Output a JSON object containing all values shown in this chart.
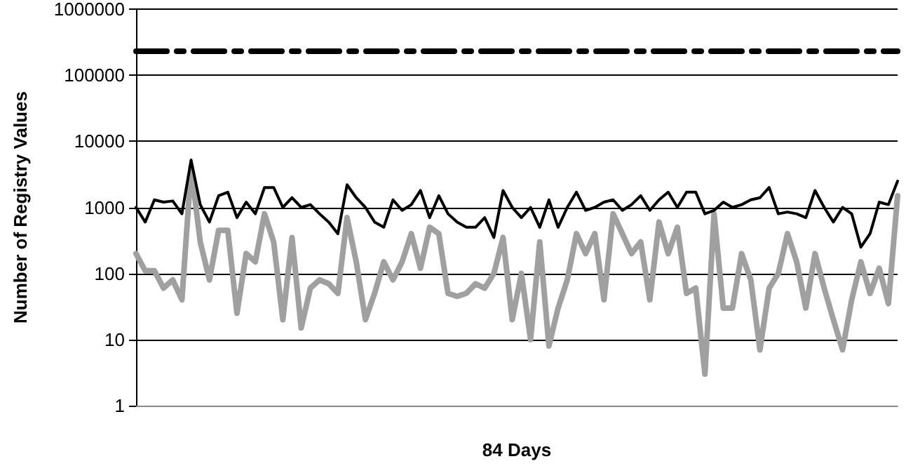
{
  "chart_data": {
    "type": "line",
    "xlabel": "84 Days",
    "ylabel": "Number of Registry Values",
    "categories": [
      null,
      null,
      null,
      null,
      null,
      null,
      null,
      null,
      null,
      null,
      null,
      null,
      null,
      null,
      null,
      null,
      null,
      null,
      null,
      null,
      null,
      null,
      null,
      null,
      null,
      null,
      null,
      null,
      null,
      null,
      null,
      null,
      null,
      null,
      null,
      null,
      null,
      null,
      null,
      null,
      null,
      null,
      null,
      null,
      null,
      null,
      null,
      null,
      null,
      null,
      null,
      null,
      null,
      null,
      null,
      null,
      null,
      null,
      null,
      null,
      null,
      null,
      null,
      null,
      null,
      null,
      null,
      null,
      null,
      null,
      null,
      null,
      null,
      null,
      null,
      null,
      null,
      null,
      null,
      null,
      null,
      null,
      null,
      null
    ],
    "series": [
      {
        "color": "#000000",
        "line_style": "dashed",
        "values": [
          230000,
          230000,
          230000,
          230000,
          230000,
          230000,
          230000,
          230000,
          230000,
          230000,
          230000,
          230000,
          230000,
          230000,
          230000,
          230000,
          230000,
          230000,
          230000,
          230000,
          230000,
          230000,
          230000,
          230000,
          230000,
          230000,
          230000,
          230000,
          230000,
          230000,
          230000,
          230000,
          230000,
          230000,
          230000,
          230000,
          230000,
          230000,
          230000,
          230000,
          230000,
          230000,
          230000,
          230000,
          230000,
          230000,
          230000,
          230000,
          230000,
          230000,
          230000,
          230000,
          230000,
          230000,
          230000,
          230000,
          230000,
          230000,
          230000,
          230000,
          230000,
          230000,
          230000,
          230000,
          230000,
          230000,
          230000,
          230000,
          230000,
          230000,
          230000,
          230000,
          230000,
          230000,
          230000,
          230000,
          230000,
          230000,
          230000,
          230000,
          230000,
          230000,
          230000,
          230000
        ]
      },
      {
        "color": "#000000",
        "line_style": "solid",
        "values": [
          1000,
          600,
          1300,
          1200,
          1250,
          800,
          5200,
          1100,
          600,
          1500,
          1700,
          700,
          1200,
          800,
          2000,
          2000,
          1000,
          1400,
          1000,
          1100,
          800,
          600,
          400,
          2200,
          1400,
          1000,
          600,
          500,
          1300,
          900,
          1100,
          1800,
          700,
          1500,
          800,
          600,
          500,
          500,
          700,
          350,
          1800,
          1000,
          700,
          1000,
          500,
          1300,
          500,
          1000,
          1700,
          900,
          1000,
          1200,
          1300,
          900,
          1100,
          1500,
          900,
          1300,
          1700,
          1000,
          1700,
          1700,
          800,
          900,
          1200,
          1000,
          1100,
          1300,
          1400,
          2000,
          800,
          850,
          800,
          700,
          1800,
          1000,
          600,
          1000,
          800,
          250,
          400,
          1200,
          1100,
          2500
        ]
      },
      {
        "color": "#a0a0a0",
        "line_style": "solid",
        "values": [
          200,
          110,
          110,
          60,
          80,
          40,
          4000,
          300,
          80,
          450,
          450,
          25,
          200,
          150,
          800,
          300,
          20,
          350,
          15,
          60,
          80,
          70,
          50,
          700,
          150,
          20,
          50,
          150,
          80,
          150,
          400,
          120,
          500,
          400,
          50,
          45,
          50,
          70,
          60,
          100,
          350,
          20,
          100,
          10,
          300,
          8,
          30,
          80,
          400,
          200,
          400,
          40,
          800,
          400,
          200,
          300,
          40,
          600,
          200,
          500,
          50,
          60,
          3,
          800,
          30,
          30,
          200,
          80,
          7,
          60,
          100,
          400,
          150,
          30,
          200,
          60,
          20,
          7,
          40,
          150,
          50,
          120,
          35,
          1500
        ]
      }
    ],
    "ylim": [
      1,
      1000000
    ],
    "yticks": [
      1,
      10,
      100,
      1000,
      10000,
      100000,
      1000000
    ],
    "log": true,
    "grid": "y",
    "marker": "none"
  }
}
